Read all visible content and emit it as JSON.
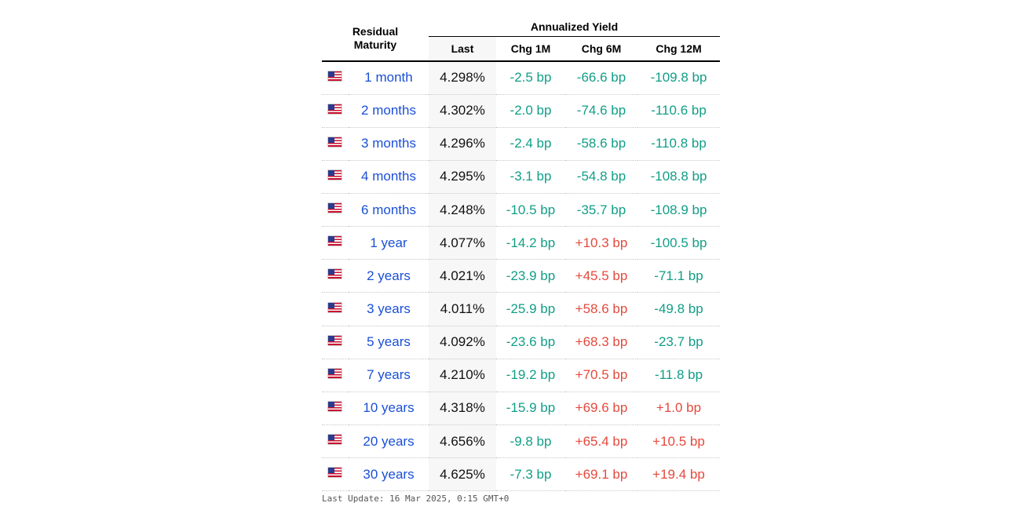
{
  "header": {
    "residual_maturity": "Residual Maturity",
    "annualized_yield": "Annualized Yield",
    "last": "Last",
    "chg_1m": "Chg 1M",
    "chg_6m": "Chg 6M",
    "chg_12m": "Chg 12M"
  },
  "flag_icon": "us-flag-icon",
  "colors": {
    "maturity_link": "#1a4fd6",
    "negative": "#119e87",
    "positive": "#e5493c"
  },
  "rows": [
    {
      "maturity": "1 month",
      "last": "4.298%",
      "chg_1m": "-2.5 bp",
      "chg_6m": "-66.6 bp",
      "chg_12m": "-109.8 bp"
    },
    {
      "maturity": "2 months",
      "last": "4.302%",
      "chg_1m": "-2.0 bp",
      "chg_6m": "-74.6 bp",
      "chg_12m": "-110.6 bp"
    },
    {
      "maturity": "3 months",
      "last": "4.296%",
      "chg_1m": "-2.4 bp",
      "chg_6m": "-58.6 bp",
      "chg_12m": "-110.8 bp"
    },
    {
      "maturity": "4 months",
      "last": "4.295%",
      "chg_1m": "-3.1 bp",
      "chg_6m": "-54.8 bp",
      "chg_12m": "-108.8 bp"
    },
    {
      "maturity": "6 months",
      "last": "4.248%",
      "chg_1m": "-10.5 bp",
      "chg_6m": "-35.7 bp",
      "chg_12m": "-108.9 bp"
    },
    {
      "maturity": "1 year",
      "last": "4.077%",
      "chg_1m": "-14.2 bp",
      "chg_6m": "+10.3 bp",
      "chg_12m": "-100.5 bp"
    },
    {
      "maturity": "2 years",
      "last": "4.021%",
      "chg_1m": "-23.9 bp",
      "chg_6m": "+45.5 bp",
      "chg_12m": "-71.1 bp"
    },
    {
      "maturity": "3 years",
      "last": "4.011%",
      "chg_1m": "-25.9 bp",
      "chg_6m": "+58.6 bp",
      "chg_12m": "-49.8 bp"
    },
    {
      "maturity": "5 years",
      "last": "4.092%",
      "chg_1m": "-23.6 bp",
      "chg_6m": "+68.3 bp",
      "chg_12m": "-23.7 bp"
    },
    {
      "maturity": "7 years",
      "last": "4.210%",
      "chg_1m": "-19.2 bp",
      "chg_6m": "+70.5 bp",
      "chg_12m": "-11.8 bp"
    },
    {
      "maturity": "10 years",
      "last": "4.318%",
      "chg_1m": "-15.9 bp",
      "chg_6m": "+69.6 bp",
      "chg_12m": "+1.0 bp"
    },
    {
      "maturity": "20 years",
      "last": "4.656%",
      "chg_1m": "-9.8 bp",
      "chg_6m": "+65.4 bp",
      "chg_12m": "+10.5 bp"
    },
    {
      "maturity": "30 years",
      "last": "4.625%",
      "chg_1m": "-7.3 bp",
      "chg_6m": "+69.1 bp",
      "chg_12m": "+19.4 bp"
    }
  ],
  "footer": {
    "last_update": "Last Update: 16 Mar 2025, 0:15 GMT+0"
  }
}
